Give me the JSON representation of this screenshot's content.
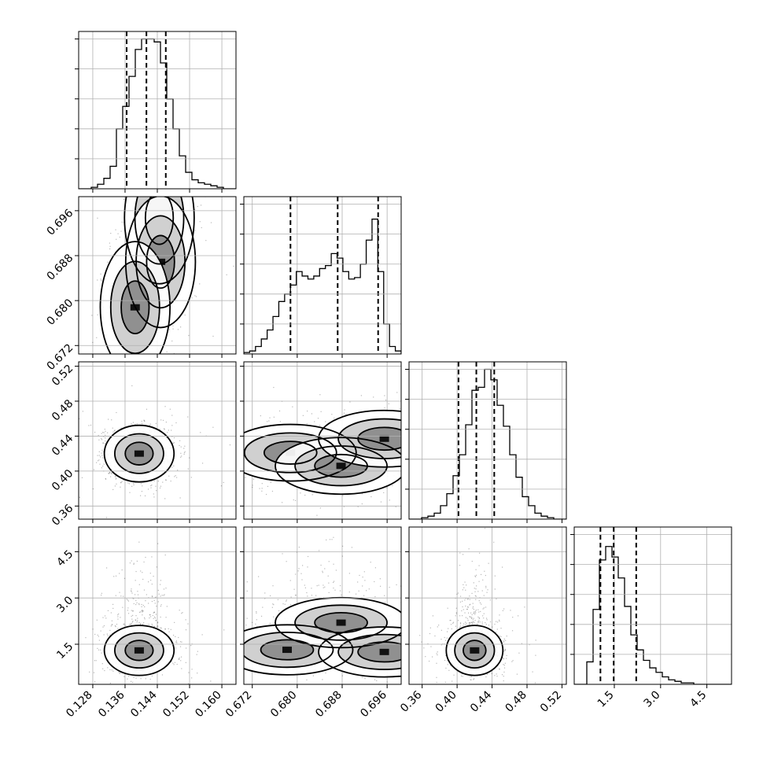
{
  "chart_data": {
    "type": "corner",
    "parameters": [
      {
        "name": "p0",
        "ticks": [
          0.128,
          0.136,
          0.144,
          0.152,
          0.16
        ],
        "tick_labels": [
          "0.128",
          "0.136",
          "0.144",
          "0.152",
          "0.160"
        ],
        "range": [
          0.1245,
          0.1635
        ],
        "mean": 0.1415,
        "sd": 0.0048
      },
      {
        "name": "p1",
        "ticks": [
          0.672,
          0.68,
          0.688,
          0.696
        ],
        "tick_labels": [
          "0.672",
          "0.680",
          "0.688",
          "0.696"
        ],
        "range": [
          0.6705,
          0.6985
        ],
        "mean": 0.6885,
        "sd": 0.0065
      },
      {
        "name": "p2",
        "ticks": [
          0.36,
          0.4,
          0.44,
          0.48,
          0.52
        ],
        "tick_labels": [
          "0.36",
          "0.40",
          "0.44",
          "0.48",
          "0.52"
        ],
        "range": [
          0.345,
          0.525
        ],
        "mean": 0.422,
        "sd": 0.018
      },
      {
        "name": "p3",
        "ticks": [
          1.5,
          3.0,
          4.5
        ],
        "tick_labels": [
          "1.5",
          "3.0",
          "4.5"
        ],
        "range": [
          0.2,
          5.3
        ],
        "mean": 1.55,
        "sd": 0.45
      }
    ],
    "quantiles": {
      "p0": [
        0.1364,
        0.1413,
        0.1461
      ],
      "p1": [
        0.6788,
        0.6872,
        0.6944
      ],
      "p2": [
        0.4016,
        0.422,
        0.4425
      ],
      "p3": [
        1.05,
        1.48,
        2.21
      ]
    },
    "histograms": {
      "p0": [
        0.0,
        0.0,
        0.01,
        0.03,
        0.07,
        0.15,
        0.4,
        0.55,
        0.75,
        0.93,
        1.0,
        1.0,
        0.98,
        0.84,
        0.6,
        0.4,
        0.22,
        0.11,
        0.06,
        0.04,
        0.03,
        0.02,
        0.01,
        0.0,
        0.0
      ],
      "p1": [
        0.01,
        0.02,
        0.05,
        0.1,
        0.16,
        0.25,
        0.35,
        0.4,
        0.46,
        0.55,
        0.52,
        0.5,
        0.52,
        0.57,
        0.59,
        0.67,
        0.64,
        0.55,
        0.5,
        0.51,
        0.6,
        0.76,
        0.9,
        0.55,
        0.2,
        0.05,
        0.02
      ],
      "p2": [
        0.0,
        0.0,
        0.01,
        0.02,
        0.04,
        0.09,
        0.17,
        0.29,
        0.43,
        0.63,
        0.86,
        0.88,
        1.0,
        0.93,
        0.76,
        0.62,
        0.43,
        0.28,
        0.15,
        0.09,
        0.04,
        0.02,
        0.01,
        0.0,
        0.0
      ],
      "p3": [
        0.0,
        0.0,
        0.15,
        0.5,
        0.83,
        0.92,
        0.85,
        0.71,
        0.52,
        0.33,
        0.23,
        0.16,
        0.11,
        0.08,
        0.05,
        0.03,
        0.02,
        0.01,
        0.01,
        0.0,
        0.0,
        0.0,
        0.0,
        0.0,
        0.0
      ]
    },
    "modes": {
      "p0_p1": [
        [
          0.1445,
          0.6947
        ],
        [
          0.1448,
          0.6869
        ],
        [
          0.1385,
          0.6788
        ]
      ],
      "p0_p2": [
        [
          0.1395,
          0.42
        ]
      ],
      "p0_p3": [
        [
          0.1395,
          1.3
        ]
      ],
      "p1_p2": [
        [
          0.6788,
          0.421
        ],
        [
          0.6878,
          0.406
        ],
        [
          0.6955,
          0.437
        ]
      ],
      "p1_p3": [
        [
          0.6782,
          1.32
        ],
        [
          0.6878,
          2.2
        ],
        [
          0.6955,
          1.25
        ]
      ],
      "p2_p3": [
        [
          0.42,
          1.3
        ]
      ]
    },
    "grid": true,
    "legend": null
  }
}
